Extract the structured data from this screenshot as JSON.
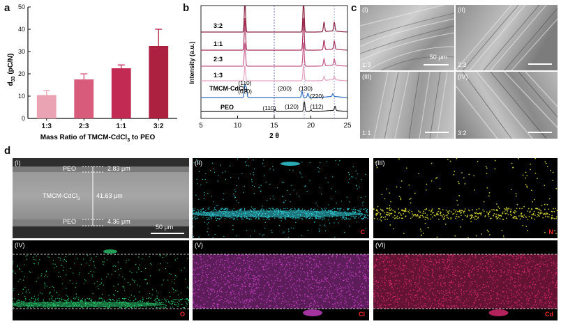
{
  "panels": {
    "a": "a",
    "b": "b",
    "c": "c",
    "d": "d"
  },
  "chart_data": [
    {
      "type": "bar",
      "panel": "a",
      "categories": [
        "1:3",
        "2:3",
        "1:1",
        "3:2"
      ],
      "values": [
        10.5,
        17.5,
        22.5,
        32.5
      ],
      "errors": [
        2.0,
        2.5,
        1.5,
        7.5
      ],
      "colors": [
        "#eaa3b3",
        "#d95b7c",
        "#c22a54",
        "#ad2140"
      ],
      "xlabel": "Mass Ratio of TMCM-CdCl3 to PEO",
      "ylabel": "d33 (pC/N)",
      "ylim": [
        0,
        50
      ],
      "yticks": [
        0,
        10,
        20,
        30,
        40,
        50
      ]
    },
    {
      "type": "line",
      "panel": "b",
      "xlabel": "2 θ",
      "ylabel": "Intensity (a.u.)",
      "xlim": [
        5,
        25
      ],
      "xticks": [
        5,
        10,
        15,
        20,
        25
      ],
      "series": [
        {
          "name": "PEO",
          "color": "#222222"
        },
        {
          "name": "TMCM-CdCl3",
          "color": "#2f6fc0"
        },
        {
          "name": "1:3",
          "color": "#e6a3c0"
        },
        {
          "name": "2:3",
          "color": "#c65a8a"
        },
        {
          "name": "1:1",
          "color": "#a8305c"
        },
        {
          "name": "3:2",
          "color": "#8a2440"
        }
      ],
      "peaks": [
        {
          "label": "(110)",
          "x": 11.0
        },
        {
          "label": "(020)",
          "x": 11.2
        },
        {
          "label": "(200)",
          "x": 18.8
        },
        {
          "label": "(130)",
          "x": 19.6
        },
        {
          "label": "(220)",
          "x": 23.0
        },
        {
          "label": "(110)",
          "x": 15.2
        },
        {
          "label": "(120)",
          "x": 19.1
        },
        {
          "label": "(112)",
          "x": 23.3
        }
      ],
      "dotted_lines_x": [
        15,
        19.1,
        23.2
      ]
    }
  ],
  "sem": [
    {
      "roman": "(I)",
      "ratio": "1:3",
      "scale": "50 μm"
    },
    {
      "roman": "(II)",
      "ratio": "2:3"
    },
    {
      "roman": "(III)",
      "ratio": "1:1"
    },
    {
      "roman": "(IV)",
      "ratio": "3:2"
    }
  ],
  "cross_section": {
    "roman": "(I)",
    "peo_top": "PEO",
    "thick_top": "2.83 μm",
    "middle": "TMCM-CdCl",
    "middle_sub": "3",
    "thick_mid": "41.63 μm",
    "peo_bottom": "PEO",
    "thick_bottom": "4.36 μm",
    "scale": "50 μm"
  },
  "maps": [
    {
      "roman": "(II)",
      "element": "C",
      "color": "#34d6e0"
    },
    {
      "roman": "(III)",
      "element": "N",
      "color": "#e0e23a"
    },
    {
      "roman": "(IV)",
      "element": "O",
      "color": "#2de07a"
    },
    {
      "roman": "(V)",
      "element": "Cl",
      "color": "#cc40c8"
    },
    {
      "roman": "(VI)",
      "element": "Cd",
      "color": "#e02a72"
    }
  ],
  "colors": {
    "element_label": "#ff2a2a"
  }
}
